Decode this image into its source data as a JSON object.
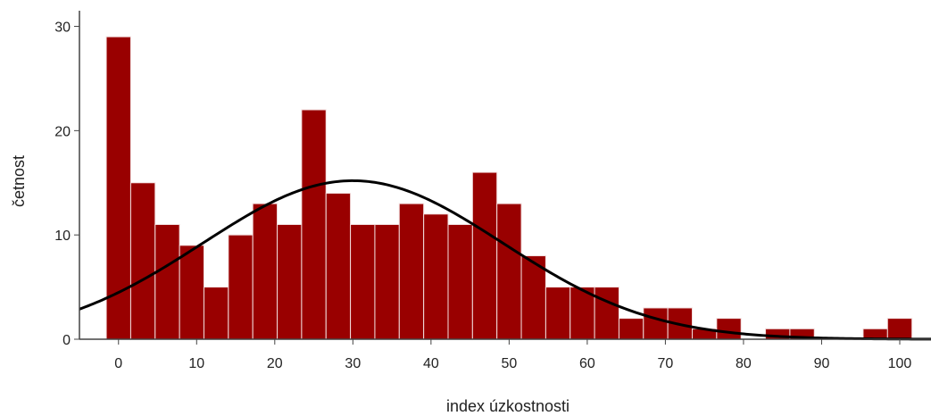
{
  "chart_data": {
    "type": "bar",
    "title": "",
    "xlabel": "index úzkostnosti",
    "ylabel": "četnost",
    "bin_width": 3.125,
    "bin_start": -1.5625,
    "values": [
      29,
      15,
      11,
      9,
      5,
      10,
      13,
      11,
      22,
      14,
      11,
      11,
      13,
      12,
      11,
      16,
      13,
      8,
      5,
      5,
      5,
      2,
      3,
      3,
      1,
      2,
      0,
      1,
      1,
      0,
      0,
      1,
      2
    ],
    "xticks": [
      "0",
      "10",
      "20",
      "30",
      "40",
      "50",
      "60",
      "70",
      "80",
      "90",
      "100"
    ],
    "yticks": [
      "0",
      "10",
      "20",
      "30"
    ],
    "xlim": [
      -5,
      104
    ],
    "ylim": [
      0,
      31.5
    ],
    "normal_curve": {
      "mean": 30,
      "sd": 19.2,
      "peak": 15.2
    },
    "bar_color": "#990000",
    "curve_color": "#000000",
    "grid": false
  }
}
